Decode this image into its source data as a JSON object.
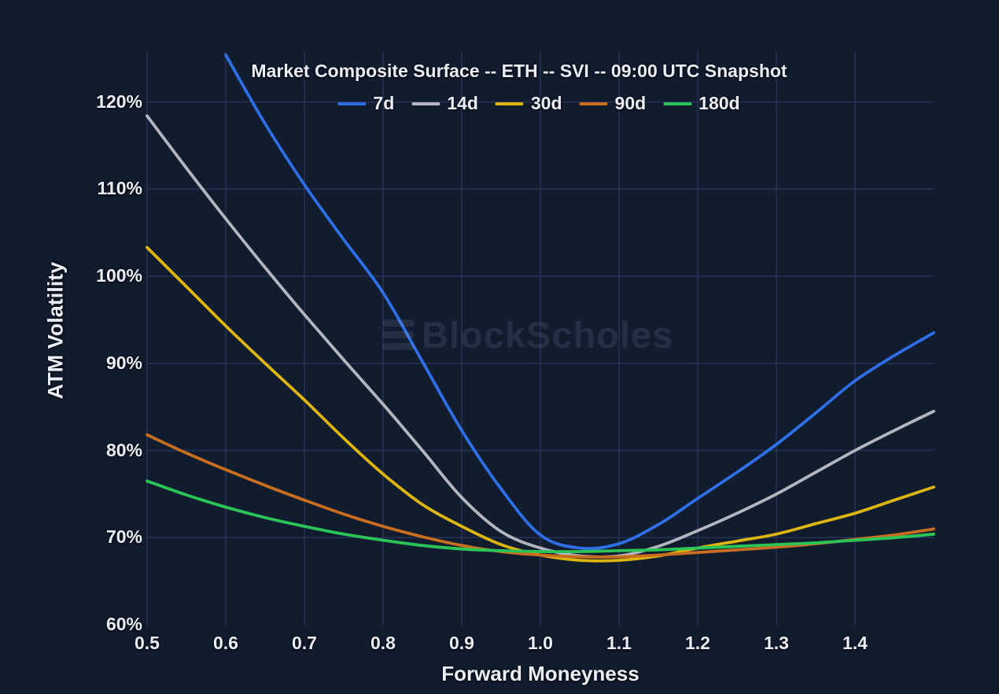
{
  "title": "Market Composite Surface -- ETH -- SVI -- 09:00 UTC Snapshot",
  "watermark": {
    "text": "BlockScholes",
    "icon": "stacked-bars-logo"
  },
  "colors": {
    "background": "#121c2f",
    "grid": "#243456",
    "text": "#eaeef6"
  },
  "chart_data": {
    "type": "line",
    "title": "Market Composite Surface -- ETH -- SVI -- 09:00 UTC Snapshot",
    "xlabel": "Forward Moneyness",
    "ylabel": "ATM Volatility",
    "grid": true,
    "legend_position": "top-center",
    "xlim": [
      0.5,
      1.583
    ],
    "ylim": [
      60,
      125.7
    ],
    "x_ticks": {
      "values": [
        0.5,
        0.6,
        0.7,
        0.8,
        0.9,
        1.0,
        1.1,
        1.2,
        1.3,
        1.4
      ],
      "labels": [
        "0.5",
        "0.6",
        "0.7",
        "0.8",
        "0.9",
        "1.0",
        "1.1",
        "1.2",
        "1.3",
        "1.4"
      ]
    },
    "y_ticks": {
      "values": [
        60,
        70,
        80,
        90,
        100,
        110,
        120
      ],
      "labels": [
        "60%",
        "70%",
        "80%",
        "90%",
        "100%",
        "110%",
        "120%"
      ]
    },
    "x": [
      0.5,
      0.55,
      0.6,
      0.65,
      0.7,
      0.75,
      0.8,
      0.85,
      0.9,
      0.95,
      1.0,
      1.05,
      1.1,
      1.15,
      1.2,
      1.25,
      1.3,
      1.35,
      1.4,
      1.45,
      1.5
    ],
    "series": [
      {
        "name": "7d",
        "color": "#2f6fe6",
        "values": [
          null,
          null,
          125.4,
          117.5,
          110.5,
          104.2,
          98.1,
          90.2,
          82.3,
          75.6,
          70.3,
          68.8,
          69.3,
          71.5,
          74.5,
          77.5,
          80.7,
          84.3,
          88.0,
          90.9,
          93.5
        ]
      },
      {
        "name": "14d",
        "color": "#b3b6bf",
        "values": [
          118.4,
          112.4,
          106.6,
          101.0,
          95.6,
          90.4,
          85.3,
          80.0,
          74.6,
          70.7,
          68.8,
          67.9,
          67.9,
          69.0,
          70.8,
          72.8,
          75.0,
          77.5,
          80.0,
          82.3,
          84.5
        ]
      },
      {
        "name": "30d",
        "color": "#ddb510",
        "values": [
          103.3,
          98.8,
          94.3,
          90.0,
          85.8,
          81.4,
          77.3,
          73.8,
          71.3,
          69.2,
          68.0,
          67.4,
          67.4,
          67.9,
          68.8,
          69.6,
          70.4,
          71.6,
          72.8,
          74.3,
          75.8
        ]
      },
      {
        "name": "90d",
        "color": "#c96d1e",
        "values": [
          81.8,
          79.7,
          77.8,
          76.0,
          74.3,
          72.7,
          71.3,
          70.1,
          69.1,
          68.4,
          68.0,
          67.8,
          67.8,
          68.0,
          68.3,
          68.6,
          68.9,
          69.3,
          69.8,
          70.3,
          71.0
        ]
      },
      {
        "name": "180d",
        "color": "#2bc457",
        "values": [
          76.5,
          74.9,
          73.5,
          72.3,
          71.3,
          70.4,
          69.7,
          69.1,
          68.7,
          68.5,
          68.4,
          68.4,
          68.5,
          68.6,
          68.8,
          69.0,
          69.2,
          69.4,
          69.7,
          70.0,
          70.4
        ]
      }
    ]
  }
}
